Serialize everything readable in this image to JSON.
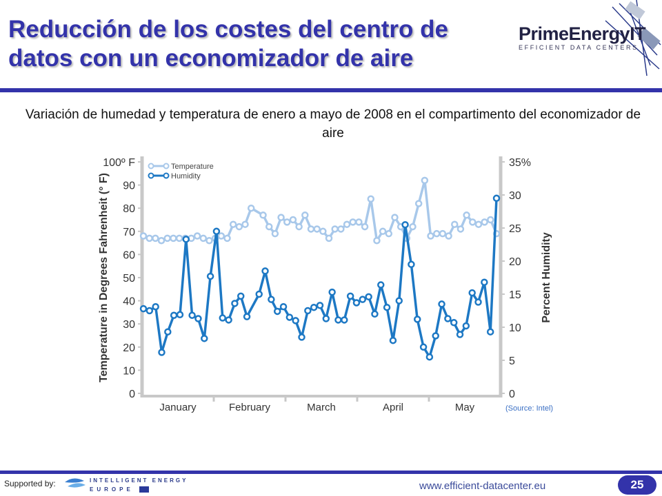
{
  "slide": {
    "title": "Reducción de los costes del centro de datos con un economizador de aire",
    "subtitle": "Variación de humedad y temperatura de enero a mayo de 2008 en el compartimento del economizador de aire",
    "source": "(Source: Intel)",
    "supported_by": "Supported by:",
    "url": "www.efficient-datacenter.eu",
    "page_number": "25",
    "accent_color": "#3333aa"
  },
  "logo": {
    "name": "PrimeEnergyIT",
    "tagline": "EFFICIENT DATA CENTERS"
  },
  "sponsor": {
    "line1": "INTELLIGENT ENERGY",
    "line2": "EUROPE"
  },
  "chart_data": {
    "type": "line",
    "x_categories": [
      "January",
      "February",
      "March",
      "April",
      "May"
    ],
    "x_count": 72,
    "y_left": {
      "label": "Temperature in Degrees Fahrenheit (° F)",
      "min": 0,
      "max": 100,
      "step": 10,
      "top_label": "100º F"
    },
    "y_right": {
      "label": "Percent Humidity",
      "min": 0,
      "max": 35,
      "step": 5,
      "top_label": "35%"
    },
    "legend": {
      "position": "top-left"
    },
    "series": [
      {
        "name": "Temperature",
        "axis": "left",
        "color": "#a8c8ea",
        "values": [
          68,
          67,
          67,
          66,
          67,
          67,
          67,
          67,
          67,
          68,
          67,
          66,
          67,
          68,
          67,
          73,
          72,
          73,
          80,
          77,
          72,
          69,
          76,
          74,
          75,
          72,
          77,
          71,
          71,
          70,
          67,
          71,
          71,
          73,
          74,
          74,
          72,
          84,
          66,
          70,
          69,
          76,
          72,
          67,
          72,
          82,
          92,
          68,
          69,
          69,
          68,
          73,
          71,
          77,
          74,
          73,
          74,
          75,
          69
        ],
        "x_index": [
          0,
          1,
          2,
          3,
          4,
          5,
          6,
          7,
          8,
          9,
          10,
          11,
          12,
          13,
          14,
          15,
          16,
          17,
          18,
          20,
          21,
          22,
          23,
          24,
          25,
          26,
          27,
          28,
          29,
          30,
          31,
          32,
          33,
          34,
          35,
          36,
          37,
          38,
          39,
          40,
          41,
          42,
          43,
          44,
          45,
          46,
          47,
          48,
          49,
          50,
          51,
          52,
          53,
          54,
          55,
          56,
          57,
          58,
          59
        ]
      },
      {
        "name": "Humidity",
        "axis": "right",
        "color": "#1d78c4",
        "values": [
          12.8,
          12.5,
          13.1,
          6.2,
          9.3,
          11.8,
          11.9,
          23.3,
          11.8,
          11.3,
          8.3,
          17.7,
          24.5,
          11.4,
          11.1,
          13.6,
          14.7,
          11.6,
          15.0,
          18.5,
          14.2,
          12.4,
          13.1,
          11.5,
          11.0,
          8.5,
          12.5,
          13.0,
          13.3,
          11.3,
          15.3,
          11.1,
          11.1,
          14.7,
          13.7,
          14.2,
          14.6,
          12.0,
          16.4,
          13.0,
          8.0,
          14.0,
          25.5,
          19.5,
          11.2,
          7.0,
          5.5,
          8.7,
          13.5,
          11.3,
          10.7,
          8.9,
          10.2,
          15.2,
          13.8,
          16.8,
          9.3,
          29.5
        ],
        "x_index": [
          0,
          1,
          2,
          3,
          4,
          5,
          6,
          7,
          8,
          9,
          10,
          11,
          12,
          13,
          14,
          15,
          16,
          17,
          19,
          20,
          21,
          22,
          23,
          24,
          25,
          26,
          27,
          28,
          29,
          30,
          31,
          32,
          33,
          34,
          35,
          36,
          37,
          38,
          39,
          40,
          41,
          42,
          43,
          44,
          45,
          46,
          47,
          48,
          49,
          50,
          51,
          52,
          53,
          54,
          55,
          56,
          57,
          58
        ]
      }
    ]
  }
}
